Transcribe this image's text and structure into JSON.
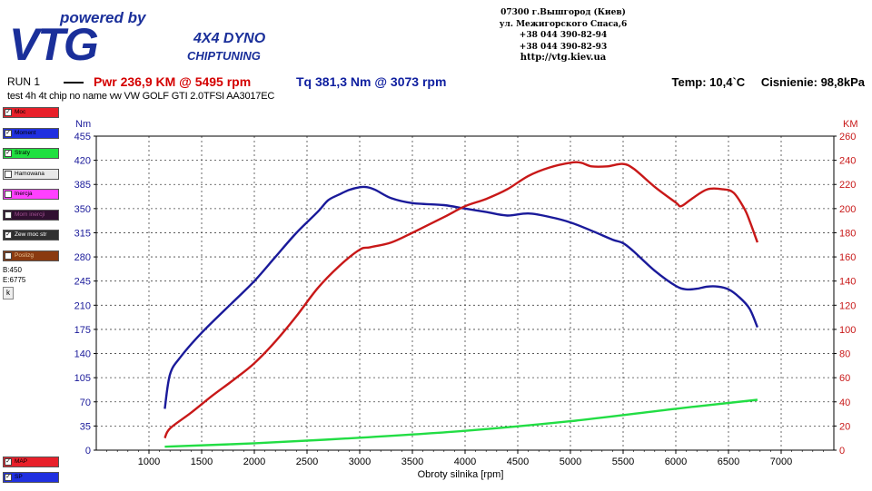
{
  "logo": {
    "tagline": "powered by",
    "brand": "VTG",
    "line1": "4X4 DYNO",
    "line2": "CHIPTUNING",
    "colors": {
      "brand": "#1a2f9a"
    }
  },
  "contact": {
    "lines": [
      "07300 г.Вышгород (Киев)",
      "ул. Межигорского Спаса,6",
      "+38 044 390-82-94",
      "+38 044 390-82-93"
    ],
    "url": "http://vtg.kiev.ua"
  },
  "run": {
    "label": "RUN 1",
    "power": "Pwr  236,9 KM @ 5495 rpm",
    "torque": "Tq 381,3 Nm @ 3073 rpm",
    "temp": "Temp: 10,4`C",
    "pressure": "Cisnienie: 98,8kPa",
    "description": "test  4h  4t  chip no name vw VW GOLF GTI 2.0TFSI AA3017EC"
  },
  "sidebar": {
    "items": [
      {
        "label": "Moc",
        "checked": true,
        "color": "#e8202a"
      },
      {
        "label": "Moment",
        "checked": true,
        "color": "#2030e0"
      },
      {
        "label": "Straty",
        "checked": true,
        "color": "#20e040"
      },
      {
        "label": "Hamowana",
        "checked": false,
        "color": "#e8e8e8"
      },
      {
        "label": "Inercja",
        "checked": false,
        "color": "#ff40ff"
      },
      {
        "label": "Mom inercji",
        "checked": false,
        "color": "#301030"
      },
      {
        "label": "Zew moc str",
        "checked": true,
        "color": "#303030"
      },
      {
        "label": "Poslizg",
        "checked": false,
        "color": "#8a3a10"
      }
    ],
    "b_value": "B:450",
    "e_value": "E:6775",
    "k_button": "k",
    "bottom_items": [
      {
        "label": "MAP",
        "checked": true,
        "color": "#e8202a"
      },
      {
        "label": "SP",
        "checked": true,
        "color": "#2030e0"
      }
    ]
  },
  "chart_data": {
    "type": "line",
    "xlabel": "Obroty silnika [rpm]",
    "ylabel_left": "Nm",
    "ylabel_right": "KM",
    "xlim": [
      500,
      7500
    ],
    "ylim_left": [
      0,
      455
    ],
    "ylim_right": [
      0,
      260
    ],
    "xticks": [
      1000,
      1500,
      2000,
      2500,
      3000,
      3500,
      4000,
      4500,
      5000,
      5500,
      6000,
      6500,
      7000
    ],
    "yticks_left": [
      0,
      35,
      70,
      105,
      140,
      175,
      210,
      245,
      280,
      315,
      350,
      385,
      420,
      455
    ],
    "yticks_right": [
      0,
      20,
      40,
      60,
      80,
      100,
      120,
      140,
      160,
      180,
      200,
      220,
      240,
      260
    ],
    "grid": true,
    "colors": {
      "power": "#c81818",
      "torque": "#1a1a9a",
      "losses": "#22dd44",
      "left_axis": "#1a1a9a",
      "right_axis": "#c81818"
    },
    "series": [
      {
        "name": "Moment",
        "axis": "left",
        "x": [
          1150,
          1200,
          1300,
          1500,
          1800,
          2000,
          2200,
          2400,
          2600,
          2700,
          2800,
          2900,
          3000,
          3073,
          3150,
          3300,
          3500,
          3800,
          4000,
          4200,
          4400,
          4600,
          4800,
          5000,
          5200,
          5400,
          5500,
          5600,
          5800,
          6000,
          6100,
          6200,
          6300,
          6400,
          6500,
          6600,
          6700,
          6775
        ],
        "values": [
          60,
          110,
          135,
          170,
          215,
          245,
          280,
          315,
          345,
          362,
          370,
          377,
          381,
          381,
          377,
          365,
          358,
          355,
          350,
          345,
          340,
          343,
          338,
          330,
          318,
          305,
          300,
          288,
          260,
          238,
          233,
          234,
          237,
          237,
          233,
          222,
          205,
          178
        ]
      },
      {
        "name": "Moc",
        "axis": "right",
        "x": [
          1150,
          1200,
          1400,
          1600,
          1800,
          2000,
          2200,
          2400,
          2600,
          2800,
          3000,
          3100,
          3300,
          3500,
          3800,
          4000,
          4200,
          4400,
          4600,
          4800,
          5000,
          5100,
          5200,
          5350,
          5495,
          5600,
          5800,
          6000,
          6050,
          6150,
          6300,
          6450,
          6550,
          6650,
          6700,
          6775
        ],
        "values": [
          10,
          18,
          31,
          45,
          58,
          72,
          90,
          111,
          134,
          152,
          166,
          168,
          172,
          180,
          193,
          202,
          208,
          216,
          227,
          234,
          238,
          238,
          235,
          235,
          237,
          233,
          218,
          205,
          202,
          208,
          216,
          216,
          213,
          200,
          190,
          172
        ]
      },
      {
        "name": "Straty",
        "axis": "left",
        "x": [
          1150,
          2000,
          3000,
          4000,
          5000,
          6000,
          6775
        ],
        "values": [
          5,
          10,
          18,
          28,
          42,
          60,
          73
        ]
      }
    ]
  }
}
